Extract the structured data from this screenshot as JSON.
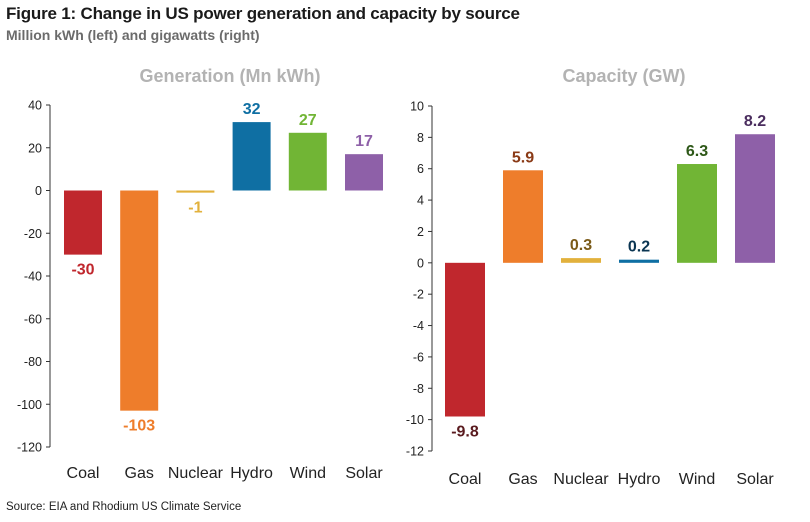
{
  "figure": {
    "title": "Figure 1: Change in US power generation and capacity by source",
    "subtitle": "Million kWh (left) and gigawatts (right)",
    "source": "Source: EIA and Rhodium US Climate Service"
  },
  "chart_data": [
    {
      "type": "bar",
      "title": "Generation (Mn kWh)",
      "categories": [
        "Coal",
        "Gas",
        "Nuclear",
        "Hydro",
        "Wind",
        "Solar"
      ],
      "values": [
        -30,
        -103,
        -1,
        32,
        27,
        17
      ],
      "value_labels": [
        "-30",
        "-103",
        "-1",
        "32",
        "27",
        "17"
      ],
      "colors": [
        "#c0272d",
        "#ee7d2b",
        "#e2b13c",
        "#0f6fa3",
        "#71b535",
        "#8e60a8"
      ],
      "label_colors": [
        "#c0272d",
        "#ee7d2b",
        "#e2b13c",
        "#0f6fa3",
        "#71b535",
        "#8e60a8"
      ],
      "ylim": [
        -120,
        40
      ],
      "yticks": [
        40,
        20,
        0,
        -20,
        -40,
        -60,
        -80,
        -100,
        -120
      ],
      "grid": false,
      "legend": "none"
    },
    {
      "type": "bar",
      "title": "Capacity (GW)",
      "categories": [
        "Coal",
        "Gas",
        "Nuclear",
        "Hydro",
        "Wind",
        "Solar"
      ],
      "values": [
        -9.8,
        5.9,
        0.3,
        0.2,
        6.3,
        8.2
      ],
      "value_labels": [
        "-9.8",
        "5.9",
        "0.3",
        "0.2",
        "6.3",
        "8.2"
      ],
      "colors": [
        "#c0272d",
        "#ee7d2b",
        "#e2b13c",
        "#0f6fa3",
        "#71b535",
        "#8e60a8"
      ],
      "label_colors": [
        "#5a1b1f",
        "#8a3a16",
        "#7a5a18",
        "#0a3552",
        "#2e5818",
        "#4a2d5e"
      ],
      "ylim": [
        -12,
        10
      ],
      "yticks": [
        10,
        8,
        6,
        4,
        2,
        0,
        -2,
        -4,
        -6,
        -8,
        -10,
        -12
      ],
      "grid": false,
      "legend": "none"
    }
  ]
}
